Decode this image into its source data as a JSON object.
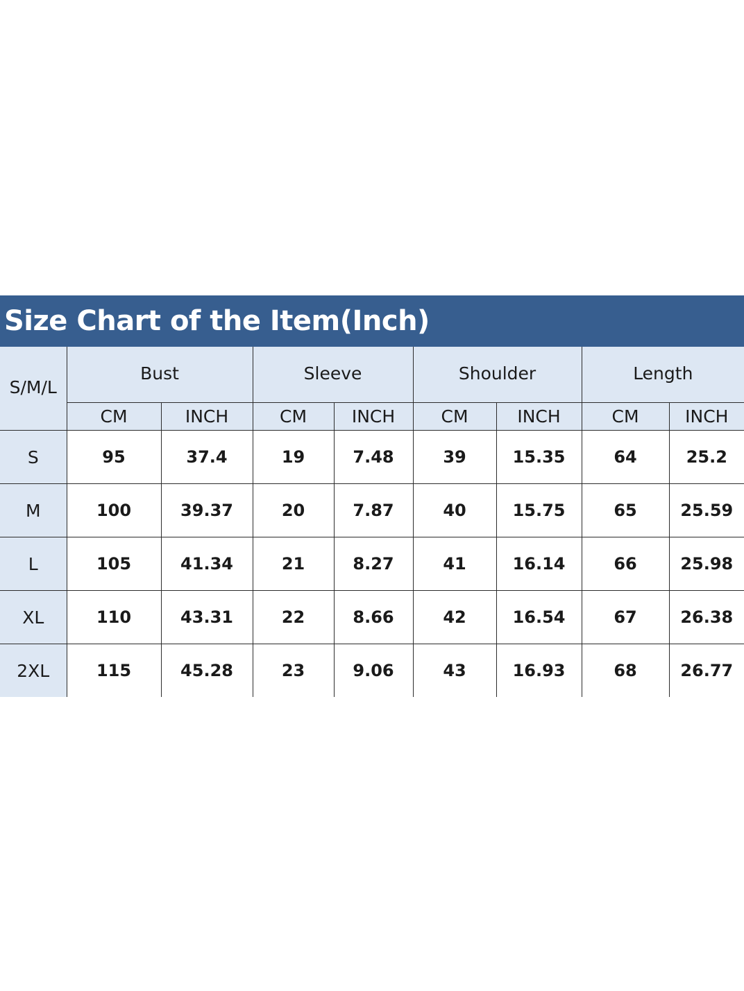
{
  "title": "Size Chart of the Item(Inch)",
  "size_header": "S/M/L",
  "groups": [
    "Bust",
    "Sleeve",
    "Shoulder",
    "Length"
  ],
  "units": [
    "CM",
    "INCH",
    "CM",
    "INCH",
    "CM",
    "INCH",
    "CM",
    "INCH"
  ],
  "rows": [
    {
      "size": "S",
      "values": [
        "95",
        "37.4",
        "19",
        "7.48",
        "39",
        "15.35",
        "64",
        "25.2"
      ]
    },
    {
      "size": "M",
      "values": [
        "100",
        "39.37",
        "20",
        "7.87",
        "40",
        "15.75",
        "65",
        "25.59"
      ]
    },
    {
      "size": "L",
      "values": [
        "105",
        "41.34",
        "21",
        "8.27",
        "41",
        "16.14",
        "66",
        "25.98"
      ]
    },
    {
      "size": "XL",
      "values": [
        "110",
        "43.31",
        "22",
        "8.66",
        "42",
        "16.54",
        "67",
        "26.38"
      ]
    },
    {
      "size": "2XL",
      "values": [
        "115",
        "45.28",
        "23",
        "9.06",
        "43",
        "16.93",
        "68",
        "26.77"
      ]
    }
  ],
  "colors": {
    "title_bar": "#375e8f",
    "header_fill": "#dde7f3",
    "grid": "#2b2b2b"
  }
}
